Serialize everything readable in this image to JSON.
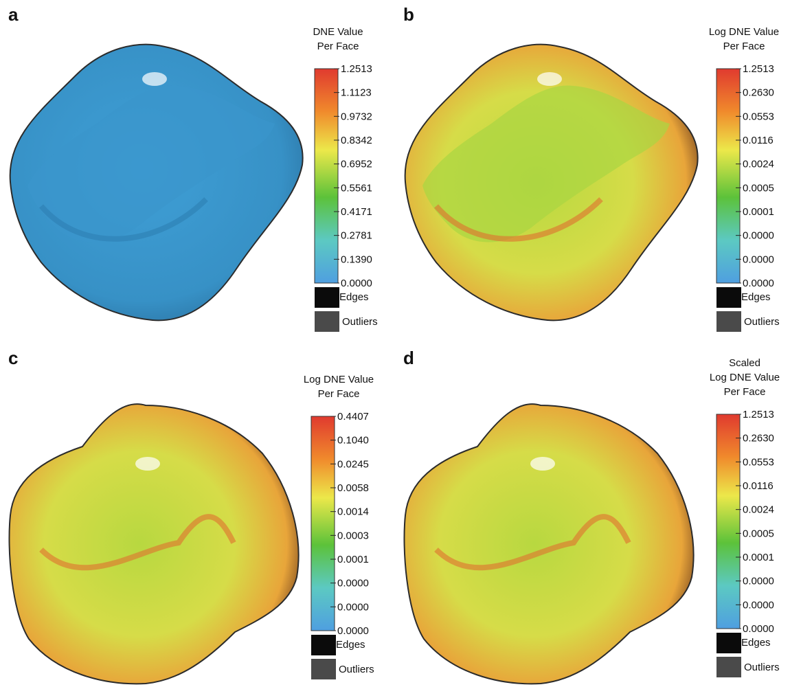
{
  "panels": [
    {
      "label": "a",
      "title": [
        "DNE Value",
        "Per Face"
      ],
      "ticks": [
        "1.2513",
        "1.1123",
        "0.9732",
        "0.8342",
        "0.6952",
        "0.5561",
        "0.4171",
        "0.2781",
        "0.1390",
        "0.0000"
      ],
      "edges": "Edges",
      "outliers": "Outliers"
    },
    {
      "label": "b",
      "title": [
        "Log DNE Value",
        "Per Face"
      ],
      "ticks": [
        "1.2513",
        "0.2630",
        "0.0553",
        "0.0116",
        "0.0024",
        "0.0005",
        "0.0001",
        "0.0000",
        "0.0000",
        "0.0000"
      ],
      "edges": "Edges",
      "outliers": "Outliers"
    },
    {
      "label": "c",
      "title": [
        "Log DNE Value",
        "Per Face"
      ],
      "ticks": [
        "0.4407",
        "0.1040",
        "0.0245",
        "0.0058",
        "0.0014",
        "0.0003",
        "0.0001",
        "0.0000",
        "0.0000",
        "0.0000"
      ],
      "edges": "Edges",
      "outliers": "Outliers"
    },
    {
      "label": "d",
      "title": [
        "Scaled",
        "Log DNE Value",
        "Per Face"
      ],
      "ticks": [
        "1.2513",
        "0.2630",
        "0.0553",
        "0.0116",
        "0.0024",
        "0.0005",
        "0.0001",
        "0.0000",
        "0.0000",
        "0.0000"
      ],
      "edges": "Edges",
      "outliers": "Outliers"
    }
  ]
}
